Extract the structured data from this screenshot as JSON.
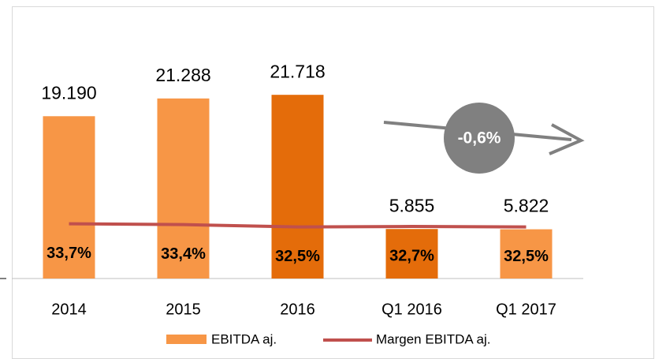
{
  "chart_data": {
    "type": "bar",
    "categories": [
      "2014",
      "2015",
      "2016",
      "Q1 2016",
      "Q1 2017"
    ],
    "series": [
      {
        "name": "EBITDA aj.",
        "type": "bar",
        "color": "#f79646",
        "colors": [
          "#f79646",
          "#f79646",
          "#e46c0a",
          "#e46c0a",
          "#f79646"
        ],
        "values": [
          19190,
          21288,
          21718,
          5855,
          5822
        ],
        "value_labels": [
          "19.190",
          "21.288",
          "21.718",
          "5.855",
          "5.822"
        ]
      },
      {
        "name": "Margen EBITDA aj.",
        "type": "line",
        "axis": "y2",
        "color": "#c0504d",
        "values": [
          33.7,
          33.4,
          32.5,
          32.7,
          32.5
        ],
        "value_labels": [
          "33,7%",
          "33,4%",
          "32,5%",
          "32,7%",
          "32,5%"
        ]
      }
    ],
    "annotation": "-0,6%",
    "ylim": [
      0,
      25000
    ],
    "y2lim": [
      13,
      93
    ],
    "legend": "bottom"
  }
}
